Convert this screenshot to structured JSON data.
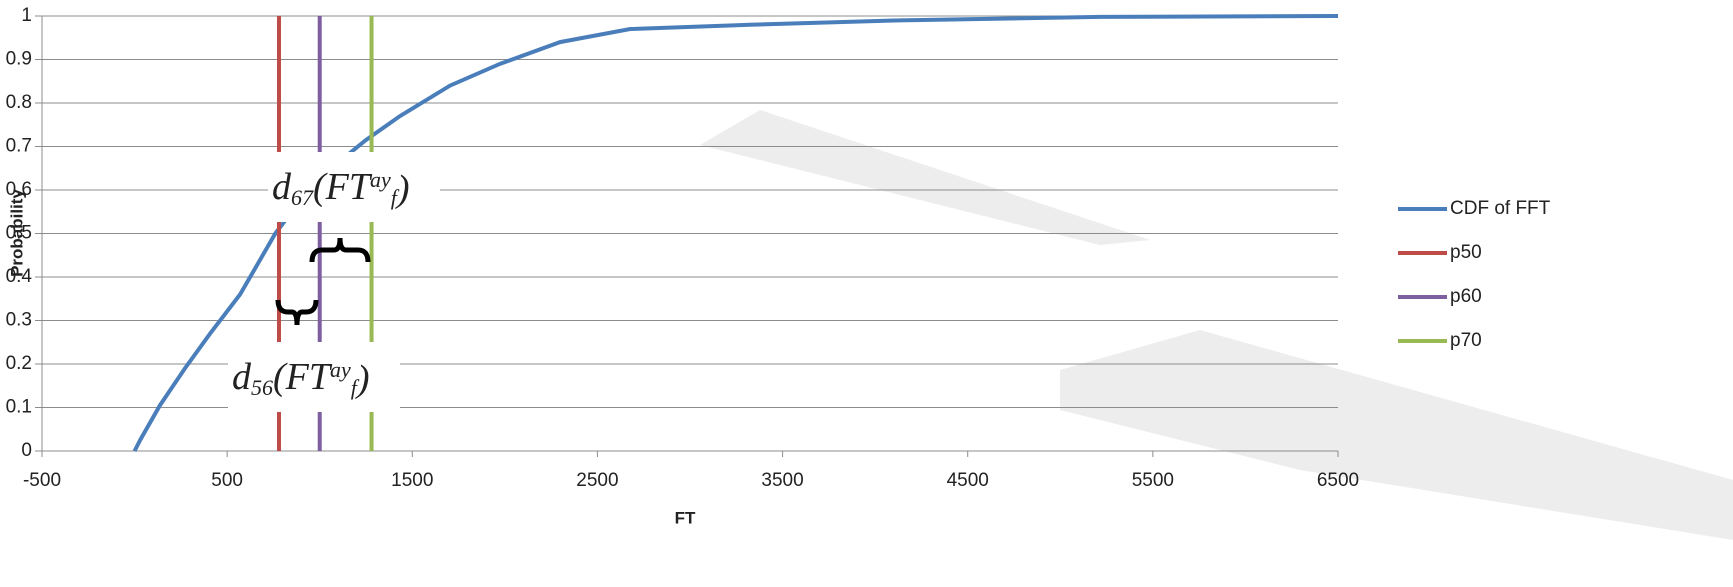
{
  "chart_data": {
    "type": "line",
    "x_label": "FT",
    "y_label": "Probability",
    "xlim": [
      -500,
      6500
    ],
    "xticks": [
      -500,
      500,
      1500,
      2500,
      3500,
      4500,
      5500,
      6500
    ],
    "ylim": [
      0,
      1
    ],
    "yticks": [
      0,
      0.1,
      0.2,
      0.3,
      0.4,
      0.5,
      0.6,
      0.7,
      0.8,
      0.9,
      1
    ],
    "grid": true,
    "legend": "right",
    "series": [
      {
        "name": "CDF of FFT",
        "color": "#4a7ebb",
        "x": [
          0,
          30,
          137,
          272,
          408,
          570,
          760,
          975,
          1250,
          1434,
          1704,
          1974,
          2298,
          2677,
          3325,
          4135,
          5216,
          6500
        ],
        "values": [
          0,
          0.025,
          0.105,
          0.19,
          0.27,
          0.36,
          0.5,
          0.62,
          0.715,
          0.77,
          0.84,
          0.89,
          0.94,
          0.97,
          0.98,
          0.99,
          0.998,
          1
        ]
      },
      {
        "name": "p50",
        "color": "#be4b48",
        "x": [
          780,
          780
        ],
        "values": [
          0,
          1
        ]
      },
      {
        "name": "p60",
        "color": "#7d5fa0",
        "x": [
          1000,
          1000
        ],
        "values": [
          0,
          1
        ]
      },
      {
        "name": "p70",
        "color": "#98b954",
        "x": [
          1280,
          1280
        ],
        "values": [
          0,
          1
        ]
      }
    ],
    "annotations": [
      {
        "parts": [
          "d",
          "67",
          "(FT",
          "ay",
          "f",
          ")"
        ]
      },
      {
        "parts": [
          "d",
          "56",
          "(FT",
          "ay",
          "f",
          ")"
        ]
      }
    ]
  }
}
